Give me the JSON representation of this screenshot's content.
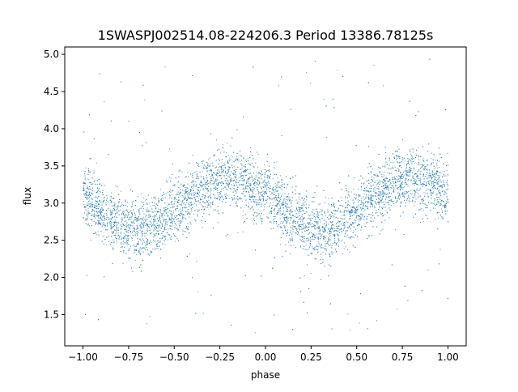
{
  "chart_data": {
    "type": "scatter",
    "title": "1SWASPJ002514.08-224206.3 Period 13386.78125s",
    "xlabel": "phase",
    "ylabel": "flux",
    "xlim": [
      -1.1,
      1.1
    ],
    "ylim": [
      1.08,
      5.1
    ],
    "xticks": [
      -1.0,
      -0.75,
      -0.5,
      -0.25,
      0.0,
      0.25,
      0.5,
      0.75,
      1.0
    ],
    "xtick_labels": [
      "−1.00",
      "−0.75",
      "−0.50",
      "−0.25",
      "0.00",
      "0.25",
      "0.50",
      "0.75",
      "1.00"
    ],
    "yticks": [
      1.5,
      2.0,
      2.5,
      3.0,
      3.5,
      4.0,
      4.5,
      5.0
    ],
    "ytick_labels": [
      "1.5",
      "2.0",
      "2.5",
      "3.0",
      "3.5",
      "4.0",
      "4.5",
      "5.0"
    ],
    "grid": false,
    "marker_color": "#1f77b4",
    "binned_profile": {
      "phase": [
        -1.0,
        -0.9,
        -0.8,
        -0.7,
        -0.6,
        -0.5,
        -0.4,
        -0.3,
        -0.2,
        -0.1,
        0.0,
        0.1,
        0.2,
        0.3,
        0.4,
        0.5,
        0.6,
        0.7,
        0.8,
        0.9,
        1.0
      ],
      "flux_mean": [
        3.11,
        2.89,
        2.72,
        2.65,
        2.72,
        2.89,
        3.11,
        3.28,
        3.35,
        3.28,
        3.11,
        2.89,
        2.72,
        2.65,
        2.72,
        2.89,
        3.11,
        3.28,
        3.35,
        3.28,
        3.11
      ],
      "flux_scatter_std": 0.2,
      "outlier_range": [
        1.25,
        4.95
      ]
    }
  }
}
